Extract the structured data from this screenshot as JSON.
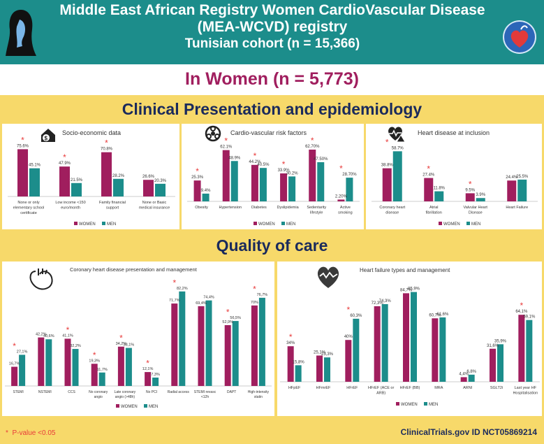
{
  "header": {
    "title": "Middle East African Registry Women CardioVascular Disease (MEA-WCVD) registry",
    "cohort": "Tunisian cohort  (n = 15,366)"
  },
  "subtitle": "In Women   (n = 5,773)",
  "sections": {
    "clinical": "Clinical Presentation and epidemiology",
    "quality": "Quality of care"
  },
  "legend": {
    "women": "WOMEN",
    "men": "MEN"
  },
  "colors": {
    "women": "#a01e5e",
    "men": "#1c8d8b",
    "star": "#e83a3a",
    "header": "#1c8d8b",
    "band": "#f7d96a"
  },
  "footer": {
    "pvalue": "P-value <0.05",
    "trial": "ClinicalTrials.gov ID NCT05869214"
  },
  "chart_data": [
    {
      "type": "bar",
      "title": "Socio-economic data",
      "icon": "money-house-icon",
      "categories": [
        "None or only elementary school certificate",
        "Low income <150 euro/month",
        "Family financial support",
        "None or Basic medical insurance"
      ],
      "series": [
        {
          "name": "WOMEN",
          "values": [
            75.6,
            47.9,
            70.8,
            26.6
          ],
          "labels": [
            "75.6%",
            "47.9%",
            "70.8%",
            "26.6%"
          ]
        },
        {
          "name": "MEN",
          "values": [
            45.1,
            21.5,
            28.2,
            20.3
          ],
          "labels": [
            "45.1%",
            "21.5%",
            "28.2%",
            "20.3%"
          ]
        }
      ],
      "significant": [
        true,
        true,
        true,
        false
      ],
      "ylim": [
        0,
        85
      ]
    },
    {
      "type": "bar",
      "title": "Cardio-vascular risk factors",
      "icon": "biohazard-icon",
      "categories": [
        "Obesity",
        "Hypertension",
        "Diabetes",
        "Dyslipidemia",
        "Sedentarity lifestyle",
        "Active smoking"
      ],
      "series": [
        {
          "name": "WOMEN",
          "values": [
            25.3,
            62.1,
            44.2,
            33.9,
            62.7,
            2.2
          ],
          "labels": [
            "25.3%",
            "62.1%",
            "44.2%",
            "33.9%",
            "62.70%",
            "2.20%"
          ]
        },
        {
          "name": "MEN",
          "values": [
            9.4,
            48.9,
            40.5,
            30.2,
            47.5,
            28.7
          ],
          "labels": [
            "9.4%",
            "48.9%",
            "40.5%",
            "30.2%",
            "47.50%",
            "28.70%"
          ]
        }
      ],
      "significant": [
        true,
        true,
        true,
        true,
        true,
        true
      ],
      "ylim": [
        0,
        72
      ]
    },
    {
      "type": "bar",
      "title": "Heart disease at inclusion",
      "icon": "heart-warning-icon",
      "categories": [
        "Coronary heart disease",
        "Atrial fibrillation",
        "Valvular Heart Disease",
        "Heart Failure"
      ],
      "series": [
        {
          "name": "WOMEN",
          "values": [
            38.8,
            27.4,
            9.5,
            24.4
          ],
          "labels": [
            "38.8%",
            "27.4%",
            "9.5%",
            "24.4%"
          ]
        },
        {
          "name": "MEN",
          "values": [
            58.7,
            11.8,
            3.9,
            25.5
          ],
          "labels": [
            "58.7%",
            "11.8%",
            "3.9%",
            "25.5%"
          ]
        }
      ],
      "significant": [
        true,
        true,
        true,
        false
      ],
      "ylim": [
        0,
        68
      ]
    },
    {
      "type": "bar",
      "title": "Coronary heart disease presentation and management",
      "icon": "heart-anatomy-icon",
      "categories": [
        "STEMI",
        "NSTEMI",
        "CCS",
        "No coronary angio",
        "Late coronary angio (>48h)",
        "No PCI",
        "Radial access",
        "STEMI revasc <12h",
        "DAPT",
        "High-intensity statin"
      ],
      "series": [
        {
          "name": "WOMEN",
          "values": [
            16.7,
            42.2,
            41.1,
            19.3,
            34.2,
            12.1,
            71.7,
            69.4,
            52.9,
            70
          ],
          "labels": [
            "16,7%",
            "42,2%",
            "41,1%",
            "19,3%",
            "34,2%",
            "12,1%",
            "71,7%",
            "69,4%",
            "52,9%",
            "70%"
          ]
        },
        {
          "name": "MEN",
          "values": [
            27.1,
            40.6,
            32.2,
            11.7,
            33.1,
            7.3,
            82.2,
            74.4,
            56.5,
            76.7
          ],
          "labels": [
            "27,1%",
            "40,6%",
            "32,2%",
            "11,7%",
            "33,1%",
            "7,3%",
            "82,2%",
            "74,4%",
            "56,5%",
            "76,7%"
          ]
        }
      ],
      "significant": [
        true,
        false,
        true,
        true,
        true,
        true,
        true,
        false,
        true,
        true
      ],
      "ylim": [
        0,
        90
      ]
    },
    {
      "type": "bar",
      "title": "Heart failure types and management",
      "icon": "heart-failure-icon",
      "categories": [
        "HFpEF",
        "HFmrEF",
        "HFrEF",
        "HFrEF (ACE or ARB)",
        "HFrEF (BB)",
        "MRA",
        "ARNI",
        "SGLT2i",
        "Last year HF Hospitalisation"
      ],
      "series": [
        {
          "name": "WOMEN",
          "values": [
            34,
            25.1,
            40,
            72.3,
            84.7,
            60.7,
            4.4,
            31.6,
            64.1
          ],
          "labels": [
            "34%",
            "25,1%",
            "40%",
            "72,3%",
            "84,7%",
            "60,7%",
            "4,4%",
            "31,6%",
            "64,1%"
          ]
        },
        {
          "name": "MEN",
          "values": [
            15.8,
            23.3,
            60.3,
            74.3,
            85.9,
            61.6,
            6.8,
            35.9,
            59.1
          ],
          "labels": [
            "15,8%",
            "23,3%",
            "60,3%",
            "74,3%",
            "85,9%",
            "61,6%",
            "6,8%",
            "35,9%",
            "59,1%"
          ]
        }
      ],
      "significant": [
        true,
        false,
        true,
        false,
        false,
        false,
        false,
        false,
        true
      ],
      "ylim": [
        0,
        95
      ]
    }
  ]
}
